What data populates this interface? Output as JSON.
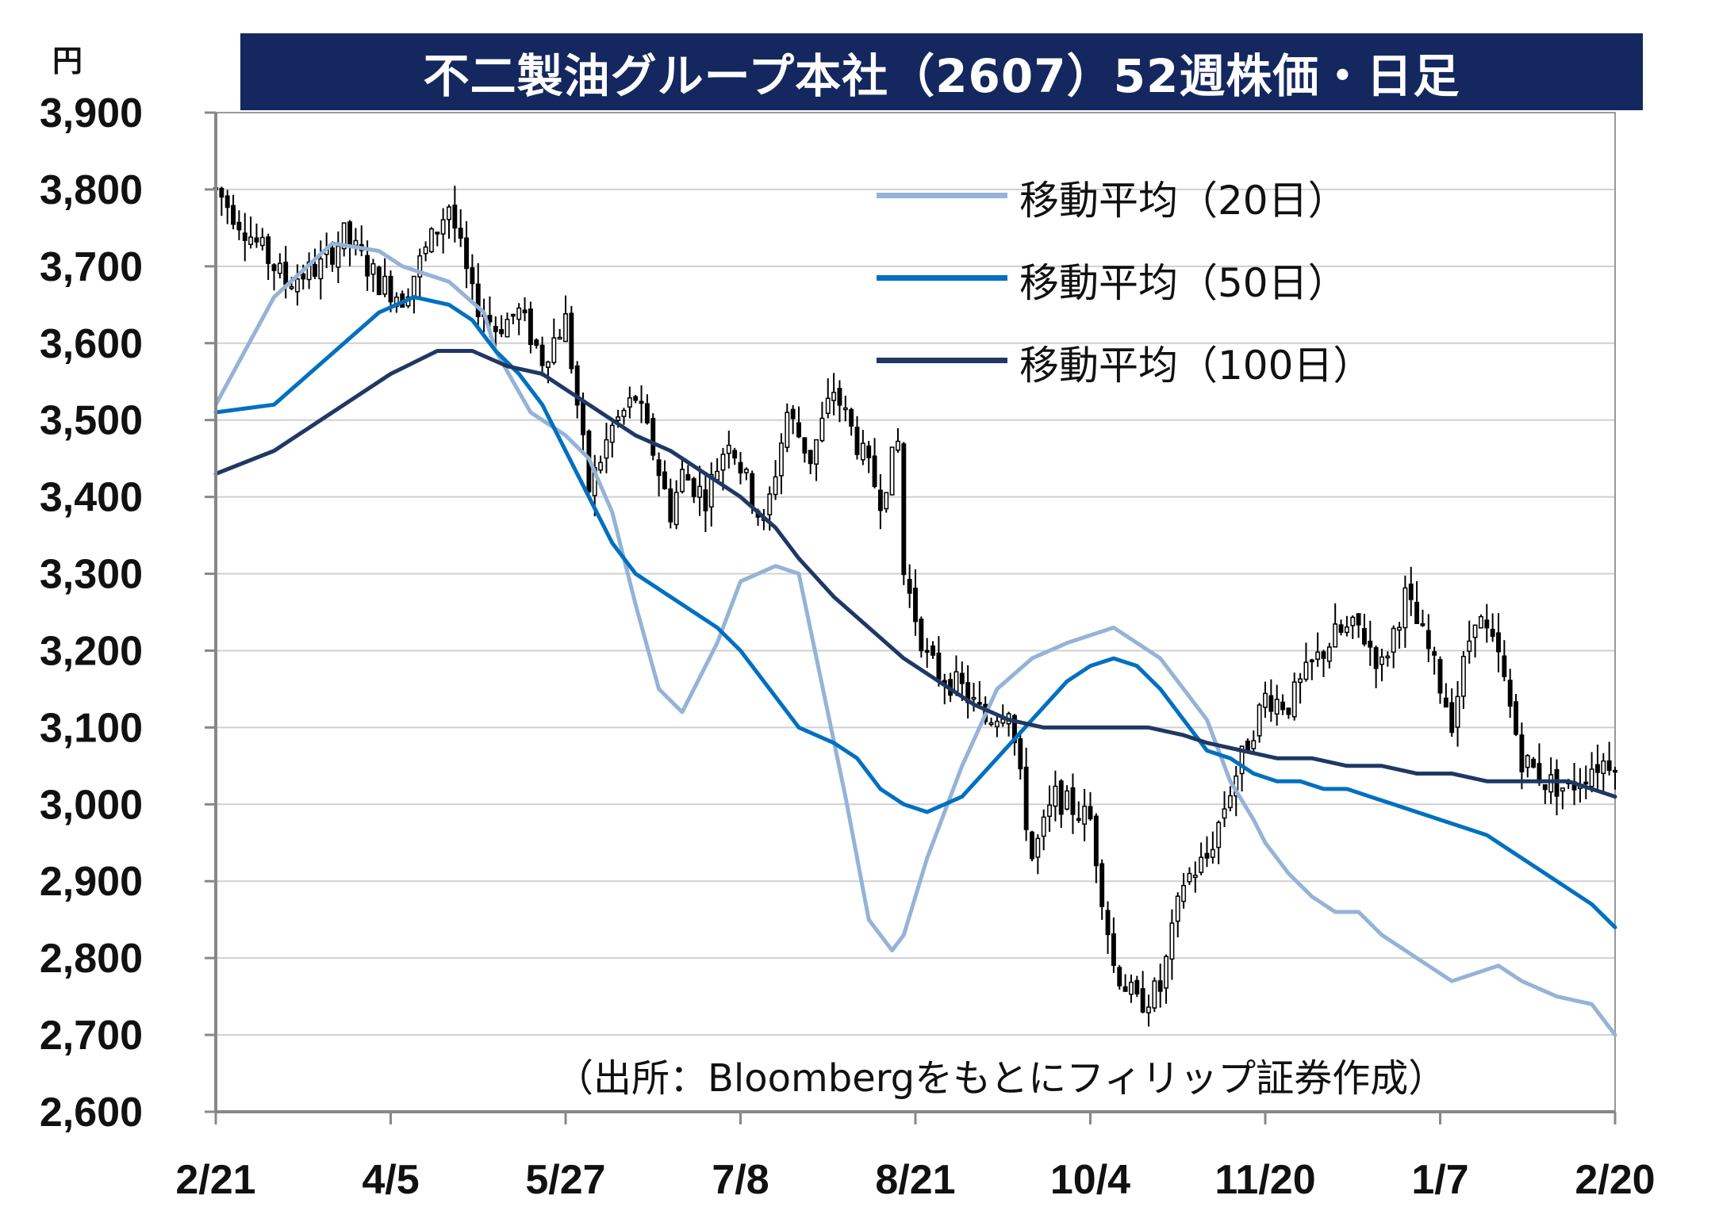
{
  "title": "不二製油グループ本社（2607）52週株価・日足",
  "unit_label": "円",
  "source_note": "（出所：Bloombergをもとにフィリップ証券作成）",
  "legend": [
    {
      "label": "移動平均（20日）",
      "color": "#95b3d7"
    },
    {
      "label": "移動平均（50日）",
      "color": "#0070c0"
    },
    {
      "label": "移動平均（100日）",
      "color": "#1f3864"
    }
  ],
  "chart_data": {
    "type": "candlestick",
    "title": "不二製油グループ本社（2607）52週株価・日足",
    "ylabel": "円",
    "ylim": [
      2600,
      3900
    ],
    "yticks": [
      3900,
      3800,
      3700,
      3600,
      3500,
      3400,
      3300,
      3200,
      3100,
      3000,
      2900,
      2800,
      2700,
      2600
    ],
    "ytick_labels": [
      "3,900",
      "3,800",
      "3,700",
      "3,600",
      "3,500",
      "3,400",
      "3,300",
      "3,200",
      "3,100",
      "3,000",
      "2,900",
      "2,800",
      "2,700",
      "2,600"
    ],
    "xtick_labels": [
      "2/21",
      "4/5",
      "5/27",
      "7/8",
      "8/21",
      "10/4",
      "11/20",
      "1/7",
      "2/20"
    ],
    "xtick_index": [
      0,
      30,
      60,
      90,
      120,
      150,
      180,
      210,
      240
    ],
    "n_days": 241,
    "grid": true,
    "legend_position": "top-right",
    "price_path": [
      [
        0,
        3800
      ],
      [
        8,
        3720
      ],
      [
        12,
        3680
      ],
      [
        18,
        3700
      ],
      [
        22,
        3740
      ],
      [
        28,
        3680
      ],
      [
        32,
        3660
      ],
      [
        36,
        3720
      ],
      [
        40,
        3780
      ],
      [
        44,
        3660
      ],
      [
        48,
        3620
      ],
      [
        52,
        3640
      ],
      [
        56,
        3580
      ],
      [
        60,
        3630
      ],
      [
        64,
        3410
      ],
      [
        68,
        3490
      ],
      [
        72,
        3530
      ],
      [
        75,
        3460
      ],
      [
        78,
        3380
      ],
      [
        80,
        3430
      ],
      [
        84,
        3400
      ],
      [
        88,
        3480
      ],
      [
        94,
        3360
      ],
      [
        98,
        3510
      ],
      [
        102,
        3450
      ],
      [
        106,
        3540
      ],
      [
        110,
        3470
      ],
      [
        114,
        3400
      ],
      [
        117,
        3470
      ],
      [
        118,
        3300
      ],
      [
        122,
        3190
      ],
      [
        124,
        3170
      ],
      [
        128,
        3150
      ],
      [
        132,
        3110
      ],
      [
        136,
        3130
      ],
      [
        140,
        2930
      ],
      [
        144,
        3010
      ],
      [
        150,
        2980
      ],
      [
        154,
        2790
      ],
      [
        158,
        2740
      ],
      [
        162,
        2760
      ],
      [
        164,
        2830
      ],
      [
        166,
        2900
      ],
      [
        170,
        2930
      ],
      [
        174,
        3020
      ],
      [
        178,
        3100
      ],
      [
        180,
        3140
      ],
      [
        184,
        3130
      ],
      [
        188,
        3180
      ],
      [
        192,
        3220
      ],
      [
        196,
        3230
      ],
      [
        200,
        3180
      ],
      [
        204,
        3270
      ],
      [
        208,
        3200
      ],
      [
        212,
        3110
      ],
      [
        216,
        3250
      ],
      [
        220,
        3190
      ],
      [
        224,
        3060
      ],
      [
        228,
        3030
      ],
      [
        232,
        3020
      ],
      [
        236,
        3050
      ],
      [
        240,
        3060
      ]
    ],
    "ohlc_sample": {
      "fields": [
        "open",
        "high",
        "low",
        "close"
      ],
      "note": "daily candles along the price path"
    },
    "series": [
      {
        "name": "移動平均（20日）",
        "x": [
          0,
          10,
          20,
          28,
          32,
          40,
          46,
          48,
          54,
          60,
          64,
          68,
          72,
          76,
          80,
          86,
          90,
          96,
          100,
          108,
          112,
          116,
          118,
          122,
          128,
          134,
          140,
          146,
          150,
          154,
          158,
          162,
          166,
          170,
          174,
          178,
          180,
          184,
          188,
          192,
          196,
          200,
          206,
          212,
          216,
          220,
          224,
          230,
          236,
          240
        ],
        "values": [
          3520,
          3660,
          3730,
          3720,
          3700,
          3680,
          3640,
          3590,
          3510,
          3480,
          3450,
          3380,
          3260,
          3150,
          3120,
          3210,
          3290,
          3310,
          3300,
          3010,
          2850,
          2810,
          2830,
          2930,
          3050,
          3150,
          3190,
          3210,
          3220,
          3230,
          3210,
          3190,
          3150,
          3110,
          3030,
          2980,
          2950,
          2910,
          2880,
          2860,
          2860,
          2830,
          2800,
          2770,
          2780,
          2790,
          2770,
          2750,
          2740,
          2700
        ]
      },
      {
        "name": "移動平均（50日）",
        "x": [
          0,
          10,
          16,
          22,
          28,
          34,
          40,
          44,
          48,
          52,
          56,
          60,
          64,
          68,
          72,
          76,
          80,
          86,
          90,
          96,
          100,
          106,
          110,
          114,
          118,
          122,
          128,
          134,
          140,
          146,
          150,
          154,
          158,
          162,
          166,
          170,
          174,
          178,
          182,
          186,
          190,
          194,
          198,
          202,
          206,
          210,
          214,
          218,
          222,
          226,
          230,
          236,
          240
        ],
        "values": [
          3510,
          3520,
          3560,
          3600,
          3640,
          3660,
          3650,
          3630,
          3590,
          3560,
          3520,
          3460,
          3400,
          3340,
          3300,
          3280,
          3260,
          3230,
          3200,
          3140,
          3100,
          3080,
          3060,
          3020,
          3000,
          2990,
          3010,
          3060,
          3110,
          3160,
          3180,
          3190,
          3180,
          3150,
          3110,
          3070,
          3060,
          3040,
          3030,
          3030,
          3020,
          3020,
          3010,
          3000,
          2990,
          2980,
          2970,
          2960,
          2940,
          2920,
          2900,
          2870,
          2840
        ]
      },
      {
        "name": "移動平均（100日）",
        "x": [
          0,
          10,
          20,
          30,
          38,
          44,
          50,
          56,
          60,
          66,
          72,
          78,
          84,
          90,
          96,
          100,
          106,
          112,
          118,
          124,
          130,
          136,
          142,
          148,
          154,
          160,
          166,
          170,
          176,
          182,
          188,
          194,
          200,
          206,
          212,
          218,
          224,
          228,
          232,
          236,
          240
        ],
        "values": [
          3430,
          3460,
          3510,
          3560,
          3590,
          3590,
          3570,
          3560,
          3540,
          3510,
          3480,
          3460,
          3430,
          3400,
          3360,
          3320,
          3270,
          3230,
          3190,
          3160,
          3130,
          3110,
          3100,
          3100,
          3100,
          3100,
          3090,
          3080,
          3070,
          3060,
          3060,
          3050,
          3050,
          3040,
          3040,
          3030,
          3030,
          3030,
          3030,
          3020,
          3010
        ]
      }
    ]
  }
}
